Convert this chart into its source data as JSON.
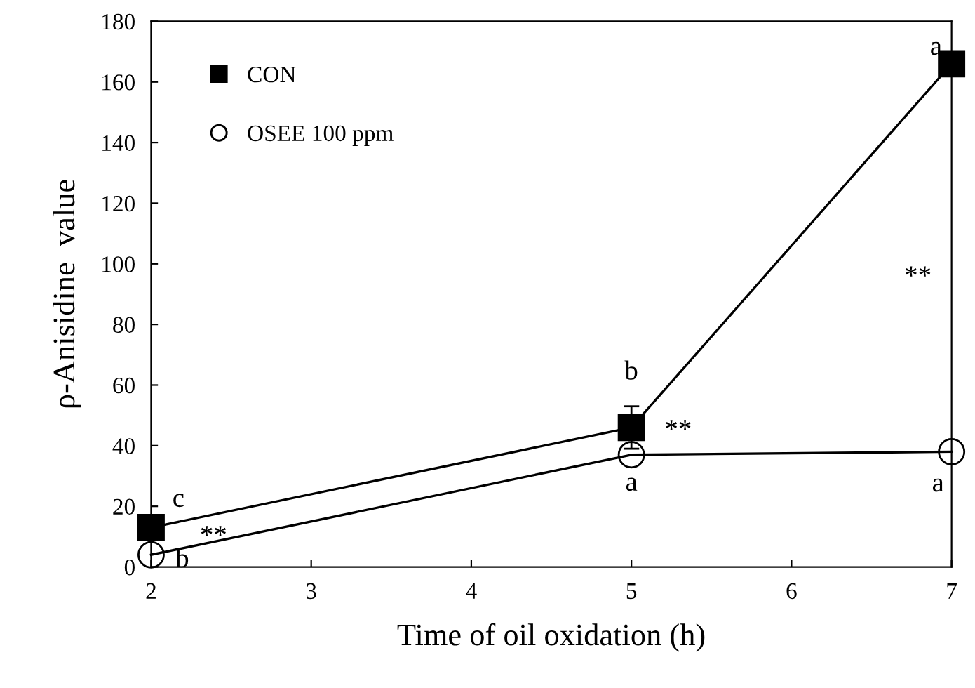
{
  "chart_data": {
    "type": "line",
    "xlabel": "Time of oil oxidation (h)",
    "ylabel": "ρ-Anisidine  value",
    "x": [
      2,
      5,
      7
    ],
    "xlim": [
      2,
      7
    ],
    "xticks": [
      2,
      3,
      4,
      5,
      6,
      7
    ],
    "ylim": [
      0,
      180
    ],
    "yticks": [
      0,
      20,
      40,
      60,
      80,
      100,
      120,
      140,
      160,
      180
    ],
    "series": [
      {
        "name": "CON",
        "color": "#000000",
        "marker": "square",
        "values": [
          13,
          46,
          166
        ],
        "errors": [
          null,
          7,
          null
        ]
      },
      {
        "name": "OSEE 100 ppm",
        "color": "#000000",
        "marker": "circle",
        "values": [
          4,
          37,
          38
        ]
      }
    ],
    "legend": "top left",
    "grid": false,
    "line_style": "solid",
    "annotations": [
      {
        "text": "c",
        "x": 2,
        "y": 13
      },
      {
        "text": "b",
        "x": 5,
        "y": 46
      },
      {
        "text": "a",
        "x": 7,
        "y": 166
      },
      {
        "text": "b",
        "x": 2,
        "y": 4
      },
      {
        "text": "a",
        "x": 5,
        "y": 37
      },
      {
        "text": "a",
        "x": 7,
        "y": 38
      },
      {
        "text": "**",
        "x": 2,
        "y": 4
      },
      {
        "text": "**",
        "x": 5,
        "y": 46
      },
      "**"
    ]
  }
}
